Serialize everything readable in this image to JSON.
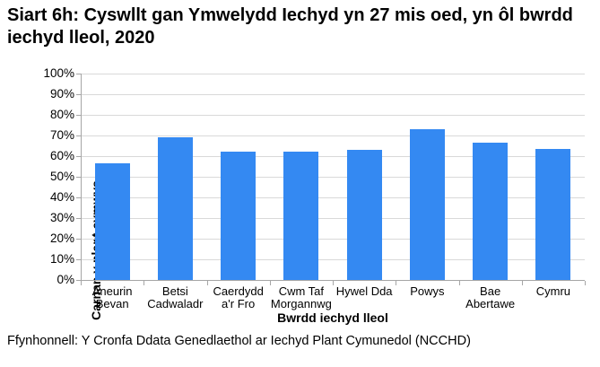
{
  "title": "Siart 6h: Cyswllt gan Ymwelydd Iechyd yn 27 mis oed, yn ôl bwrdd iechyd lleol, 2020",
  "source": "Ffynhonnell: Y Cronfa Ddata Genedlaethol ar Iechyd Plant Cymunedol (NCCHD)",
  "chart_data": {
    "type": "bar",
    "title": "Siart 6h: Cyswllt gan Ymwelydd Iechyd yn 27 mis oed, yn ôl bwrdd iechyd lleol, 2020",
    "categories": [
      "Aneurin Bevan",
      "Betsi Cadwaladr",
      "Caerdydd a'r Fro",
      "Cwm Taf Morgannwg",
      "Hywel Dda",
      "Powys",
      "Bae Abertawe",
      "Cymru"
    ],
    "values": [
      56.5,
      69,
      62,
      62,
      63,
      73,
      66.5,
      63.5
    ],
    "xlabel": "Bwrdd iechyd lleol",
    "ylabel": "Carnan y plant cymwys",
    "ylim": [
      0,
      100
    ],
    "ytick_step": 10,
    "ytick_labels": [
      "0%",
      "10%",
      "20%",
      "30%",
      "40%",
      "50%",
      "60%",
      "70%",
      "80%",
      "90%",
      "100%"
    ],
    "grid": true,
    "legend": "none",
    "bar_color": "#3489F2",
    "gridline_color": "#d9d9d9",
    "axis_color": "#a6a6a6",
    "text_color": "#000000"
  }
}
